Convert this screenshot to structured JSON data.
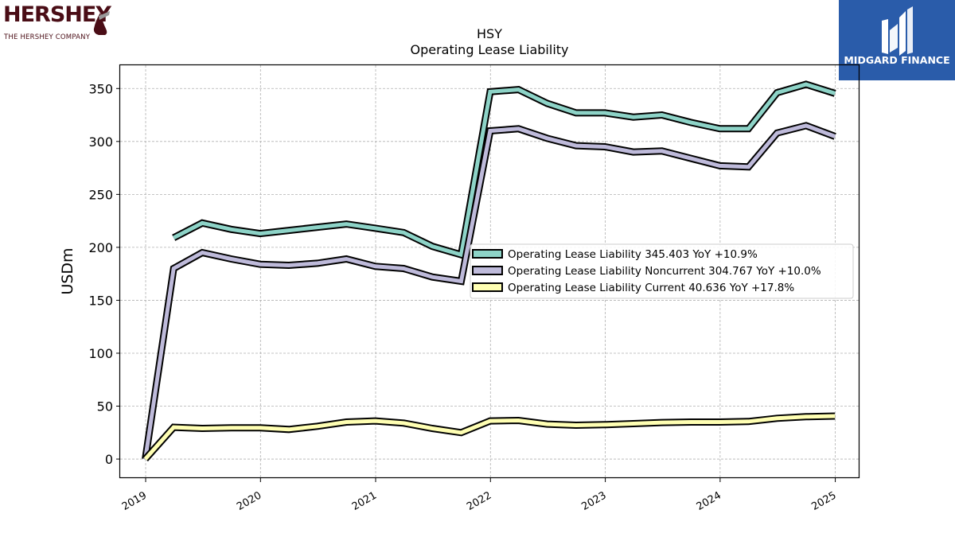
{
  "logos": {
    "left_word": "HERSHEY",
    "left_sub": "THE HERSHEY COMPANY",
    "right_text": "MIDGARD FINANCE"
  },
  "chart_data": {
    "type": "line",
    "title": "HSY",
    "subtitle": "Operating Lease Liability",
    "ylabel": "USDm",
    "xlabel": "",
    "ylim": [
      -18,
      372
    ],
    "yticks": [
      0,
      50,
      100,
      150,
      200,
      250,
      300,
      350
    ],
    "xlim": [
      "2018-10-12",
      "2025-03-19"
    ],
    "xticks": [
      "2019",
      "2020",
      "2021",
      "2022",
      "2023",
      "2024",
      "2025"
    ],
    "grid": true,
    "legend_position": "center-right",
    "x": [
      "2018-12-31",
      "2019-03-31",
      "2019-06-30",
      "2019-09-30",
      "2019-12-31",
      "2020-03-31",
      "2020-06-30",
      "2020-09-30",
      "2020-12-31",
      "2021-03-31",
      "2021-06-30",
      "2021-09-30",
      "2021-12-31",
      "2022-03-31",
      "2022-06-30",
      "2022-09-30",
      "2022-12-31",
      "2023-03-31",
      "2023-06-30",
      "2023-09-30",
      "2023-12-31",
      "2024-03-31",
      "2024-06-30",
      "2024-09-30",
      "2024-12-31"
    ],
    "series": [
      {
        "name": "Operating Lease Liability",
        "legend": "Operating Lease Liability  345.403 YoY +10.9%",
        "color": "#8dd3c7",
        "values": [
          null,
          209,
          223,
          217,
          213,
          216,
          219,
          222,
          218,
          214,
          201,
          193,
          347,
          349,
          336,
          327,
          327,
          323,
          325,
          318,
          312,
          312,
          346,
          354,
          345.403
        ]
      },
      {
        "name": "Operating Lease Liability Noncurrent",
        "legend": "Operating Lease Liability Noncurrent  304.767 YoY +10.0%",
        "color": "#bebada",
        "values": [
          0,
          180,
          195,
          189,
          184,
          183,
          185,
          189,
          182,
          180,
          172,
          168,
          310,
          312,
          303,
          296,
          295,
          290,
          291,
          284,
          277,
          276,
          308,
          315,
          304.767
        ]
      },
      {
        "name": "Operating Lease Liability Current",
        "legend": "Operating Lease Liability Current  40.636 YoY +17.8%",
        "color": "#ffffb3",
        "values": [
          0,
          30,
          29,
          29.5,
          29.5,
          28,
          31,
          35,
          36,
          34,
          29,
          25,
          36,
          36.5,
          33,
          32,
          32.5,
          33.5,
          34.5,
          35,
          35,
          35.5,
          38.5,
          40,
          40.636
        ]
      }
    ]
  }
}
